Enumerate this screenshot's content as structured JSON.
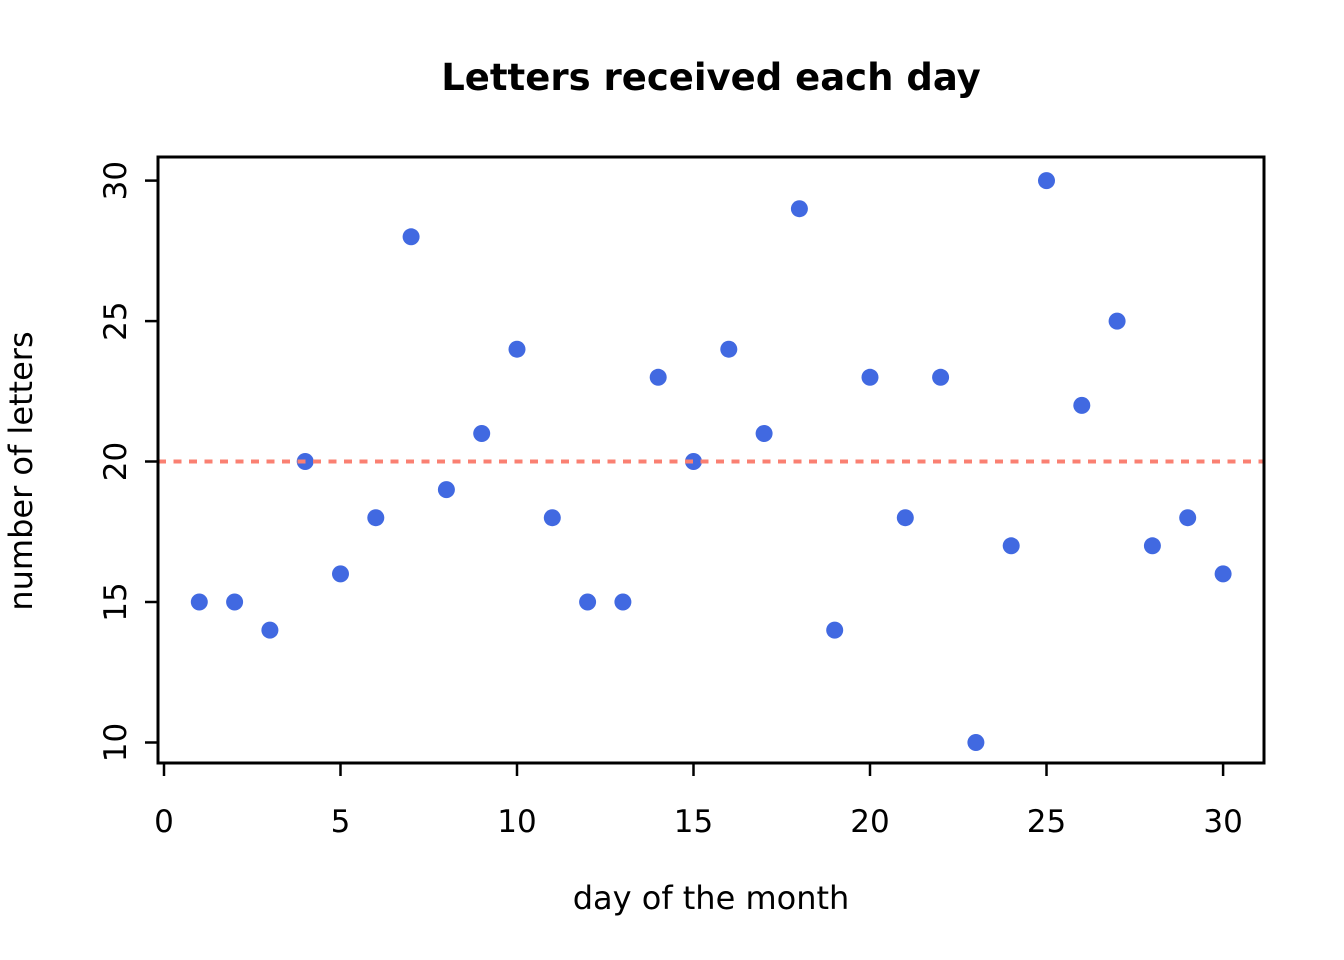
{
  "chart_data": {
    "type": "scatter",
    "title": "Letters received each day",
    "xlabel": "day of the month",
    "ylabel": "number of letters",
    "x": [
      1,
      2,
      3,
      4,
      5,
      6,
      7,
      8,
      9,
      10,
      11,
      12,
      13,
      14,
      15,
      16,
      17,
      18,
      19,
      20,
      21,
      22,
      23,
      24,
      25,
      26,
      27,
      28,
      29,
      30
    ],
    "y": [
      15,
      15,
      14,
      20,
      16,
      18,
      28,
      19,
      21,
      24,
      18,
      15,
      15,
      23,
      20,
      24,
      21,
      29,
      14,
      23,
      18,
      23,
      10,
      17,
      30,
      22,
      25,
      17,
      18,
      16
    ],
    "x_ticks": [
      0,
      5,
      10,
      15,
      20,
      25,
      30
    ],
    "y_ticks": [
      10,
      15,
      20,
      25,
      30
    ],
    "xlim": [
      -0.17,
      31.16
    ],
    "ylim": [
      9.27,
      30.84
    ],
    "grid": false,
    "legend": null,
    "point_color": "#4169E1",
    "axis_color": "#000000",
    "background": "#FFFFFF",
    "reference_line": {
      "y": 20,
      "color": "#FA8072",
      "style": "dashed"
    }
  }
}
